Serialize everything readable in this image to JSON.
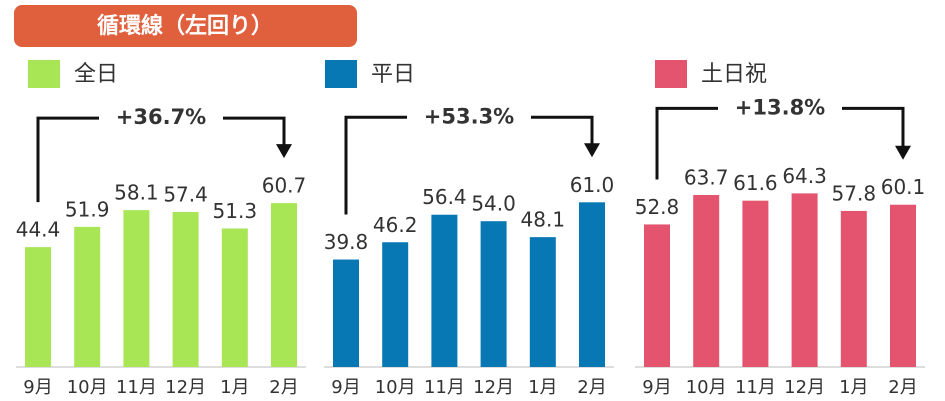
{
  "title": "循環線（左回り）",
  "chart_data": [
    {
      "type": "bar",
      "categories": [
        "9月",
        "10月",
        "11月",
        "12月",
        "1月",
        "2月"
      ],
      "series": [
        {
          "name": "全日",
          "color": "#a9e656",
          "values": [
            44.4,
            51.9,
            58.1,
            57.4,
            51.3,
            60.7
          ]
        }
      ],
      "annotation": "+36.7%"
    },
    {
      "type": "bar",
      "categories": [
        "9月",
        "10月",
        "11月",
        "12月",
        "1月",
        "2月"
      ],
      "series": [
        {
          "name": "平日",
          "color": "#0878b5",
          "values": [
            39.8,
            46.2,
            56.4,
            54.0,
            48.1,
            61.0
          ],
          "value_labels": [
            "39.8",
            "46.2",
            "56.4",
            "54.0",
            "48.1",
            "61.0"
          ]
        }
      ],
      "annotation": "+53.3%"
    },
    {
      "type": "bar",
      "categories": [
        "9月",
        "10月",
        "11月",
        "12月",
        "1月",
        "2月"
      ],
      "series": [
        {
          "name": "土日祝",
          "color": "#e4546e",
          "values": [
            52.8,
            63.7,
            61.6,
            64.3,
            57.8,
            60.1
          ]
        }
      ],
      "annotation": "+13.8%"
    }
  ]
}
